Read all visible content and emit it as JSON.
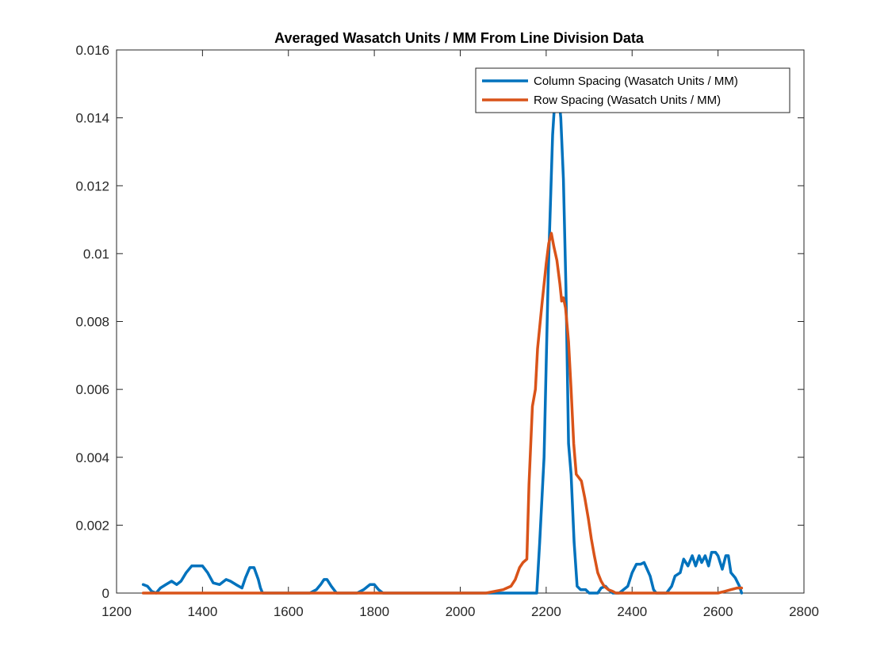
{
  "chart_data": {
    "type": "line",
    "title": "Averaged Wasatch Units / MM From Line Division Data",
    "xlabel": "",
    "ylabel": "",
    "xlim": [
      1200,
      2800
    ],
    "ylim": [
      0,
      0.016
    ],
    "xticks": [
      1200,
      1400,
      1600,
      1800,
      2000,
      2200,
      2400,
      2600,
      2800
    ],
    "xtick_labels": [
      "1200",
      "1400",
      "1600",
      "1800",
      "2000",
      "2200",
      "2400",
      "2600",
      "2800"
    ],
    "yticks": [
      0,
      0.002,
      0.004,
      0.006,
      0.008,
      0.01,
      0.012,
      0.014,
      0.016
    ],
    "ytick_labels": [
      "0",
      "0.002",
      "0.004",
      "0.006",
      "0.008",
      "0.01",
      "0.012",
      "0.014",
      "0.016"
    ],
    "grid": false,
    "box": true,
    "legend_position": "top-right",
    "series": [
      {
        "name": "Column Spacing (Wasatch Units / MM)",
        "color": "#0072BD",
        "x": [
          1262,
          1272,
          1282,
          1292,
          1302,
          1315,
          1328,
          1340,
          1350,
          1362,
          1375,
          1388,
          1400,
          1412,
          1425,
          1440,
          1455,
          1465,
          1478,
          1492,
          1500,
          1510,
          1520,
          1530,
          1535,
          1540,
          1650,
          1665,
          1675,
          1683,
          1690,
          1700,
          1712,
          1760,
          1775,
          1790,
          1800,
          1810,
          1820,
          2175,
          2178,
          2185,
          2195,
          2205,
          2215,
          2222,
          2228,
          2234,
          2240,
          2246,
          2252,
          2258,
          2265,
          2272,
          2280,
          2292,
          2300,
          2310,
          2320,
          2328,
          2338,
          2345,
          2355,
          2360,
          2370,
          2380,
          2390,
          2400,
          2410,
          2420,
          2428,
          2435,
          2442,
          2450,
          2456,
          2462,
          2466,
          2480,
          2492,
          2500,
          2512,
          2520,
          2530,
          2540,
          2548,
          2556,
          2562,
          2570,
          2578,
          2585,
          2594,
          2600,
          2610,
          2618,
          2624,
          2630,
          2640,
          2650,
          2655
        ],
        "y": [
          0.00025,
          0.0002,
          5e-05,
          0.0,
          0.00015,
          0.00025,
          0.00035,
          0.00025,
          0.00035,
          0.0006,
          0.0008,
          0.0008,
          0.0008,
          0.0006,
          0.0003,
          0.00025,
          0.0004,
          0.00035,
          0.00025,
          0.00015,
          0.00045,
          0.00075,
          0.00075,
          0.0004,
          0.00015,
          0.0,
          0.0,
          0.0001,
          0.00025,
          0.0004,
          0.0004,
          0.0002,
          0.0,
          0.0,
          0.0001,
          0.00025,
          0.00025,
          0.0001,
          0.0,
          0.0,
          0.0,
          0.0015,
          0.004,
          0.0095,
          0.0135,
          0.0149,
          0.0148,
          0.014,
          0.0122,
          0.009,
          0.0044,
          0.0035,
          0.0015,
          0.0002,
          0.0001,
          0.0001,
          0.0,
          0.0,
          0.0,
          0.00015,
          0.0002,
          0.0001,
          0.0,
          0.0,
          0.0,
          0.0001,
          0.0002,
          0.0006,
          0.00085,
          0.00085,
          0.0009,
          0.0007,
          0.0005,
          0.0001,
          0.0,
          0.0,
          0.0,
          0.0,
          0.0002,
          0.0005,
          0.0006,
          0.001,
          0.0008,
          0.0011,
          0.0008,
          0.0011,
          0.0009,
          0.0011,
          0.0008,
          0.0012,
          0.0012,
          0.0011,
          0.0007,
          0.0011,
          0.0011,
          0.0006,
          0.00045,
          0.0002,
          0.0
        ]
      },
      {
        "name": "Row Spacing (Wasatch Units / MM)",
        "color": "#D95319",
        "x": [
          1262,
          1500,
          2060,
          2080,
          2100,
          2118,
          2128,
          2138,
          2146,
          2155,
          2160,
          2168,
          2175,
          2180,
          2190,
          2200,
          2206,
          2212,
          2218,
          2225,
          2232,
          2236,
          2240,
          2245,
          2252,
          2258,
          2264,
          2270,
          2276,
          2282,
          2290,
          2298,
          2305,
          2312,
          2320,
          2328,
          2335,
          2345,
          2355,
          2362,
          2500,
          2600,
          2615,
          2630,
          2645,
          2655
        ],
        "y": [
          0.0,
          0.0,
          0.0,
          5e-05,
          0.0001,
          0.0002,
          0.0004,
          0.00075,
          0.0009,
          0.001,
          0.0032,
          0.0055,
          0.006,
          0.0072,
          0.0085,
          0.0097,
          0.0103,
          0.0106,
          0.0102,
          0.0098,
          0.0091,
          0.0086,
          0.0087,
          0.0084,
          0.0074,
          0.006,
          0.0044,
          0.0035,
          0.0034,
          0.0033,
          0.0028,
          0.0022,
          0.0016,
          0.0011,
          0.0006,
          0.00035,
          0.0002,
          0.0001,
          5e-05,
          0.0,
          0.0,
          0.0,
          5e-05,
          0.0001,
          0.00015,
          0.00015
        ]
      }
    ]
  }
}
